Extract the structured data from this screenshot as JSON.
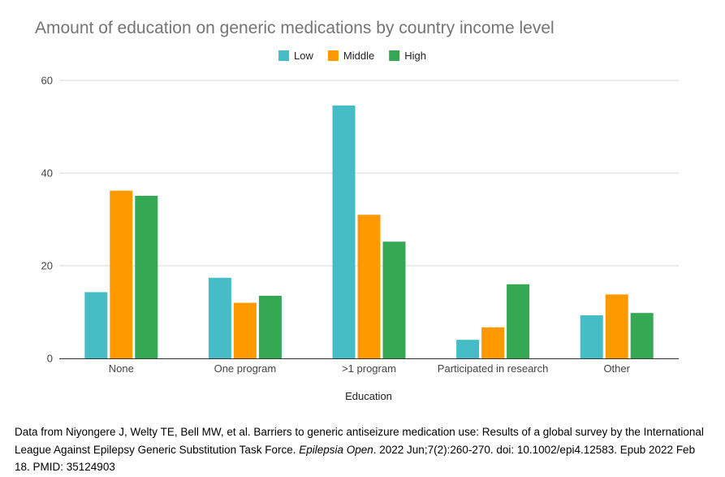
{
  "chart_data": {
    "type": "bar",
    "title": "Amount of education on generic medications by country income level",
    "xlabel": "Education",
    "ylabel": "",
    "ylim": [
      0,
      60
    ],
    "yticks": [
      0,
      20,
      40,
      60
    ],
    "grid": true,
    "legend_position": "top-center",
    "categories": [
      "None",
      "One program",
      ">1 program",
      "Participated in research",
      "Other"
    ],
    "series": [
      {
        "name": "Low",
        "color": "#46bdc6",
        "values": [
          14.3,
          17.4,
          54.6,
          4.0,
          9.3
        ]
      },
      {
        "name": "Middle",
        "color": "#ff9900",
        "values": [
          36.2,
          12.0,
          31.0,
          6.7,
          13.8
        ]
      },
      {
        "name": "High",
        "color": "#34a853",
        "values": [
          35.1,
          13.5,
          25.2,
          16.0,
          9.8
        ]
      }
    ]
  },
  "caption": {
    "prefix": "Data from Niyongere J, Welty TE, Bell MW, et al. Barriers to generic antiseizure medication use: Results of a global survey by the International League Against Epilepsy Generic Substitution Task Force. ",
    "journal": "Epilepsia Open",
    "suffix": ". 2022 Jun;7(2):260-270. doi: 10.1002/epi4.12583. Epub 2022 Feb 18. PMID: 35124903"
  }
}
